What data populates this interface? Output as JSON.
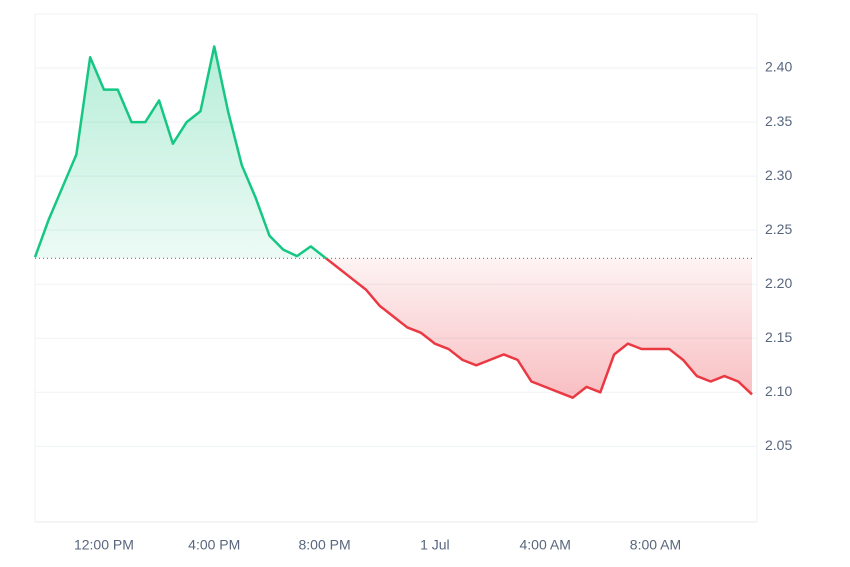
{
  "chart_data": {
    "type": "line",
    "categories": [
      null,
      null,
      null,
      null,
      null,
      "12:00 PM",
      null,
      null,
      null,
      null,
      null,
      null,
      null,
      "4:00 PM",
      null,
      null,
      null,
      null,
      null,
      null,
      null,
      "8:00 PM",
      null,
      null,
      null,
      null,
      null,
      null,
      null,
      "1 Jul",
      null,
      null,
      null,
      null,
      null,
      null,
      null,
      "4:00 AM",
      null,
      null,
      null,
      null,
      null,
      null,
      null,
      "8:00 AM",
      null,
      null,
      null,
      null,
      null,
      null,
      null
    ],
    "values": [
      2.225,
      2.26,
      2.29,
      2.32,
      2.41,
      2.38,
      2.38,
      2.35,
      2.35,
      2.37,
      2.33,
      2.35,
      2.36,
      2.42,
      2.36,
      2.31,
      2.28,
      2.245,
      2.232,
      2.226,
      2.235,
      2.225,
      2.215,
      2.205,
      2.195,
      2.18,
      2.17,
      2.16,
      2.155,
      2.145,
      2.14,
      2.13,
      2.125,
      2.13,
      2.135,
      2.13,
      2.11,
      2.105,
      2.1,
      2.095,
      2.105,
      2.1,
      2.135,
      2.145,
      2.14,
      2.14,
      2.14,
      2.13,
      2.115,
      2.11,
      2.115,
      2.11,
      2.098
    ],
    "baseline": 2.224,
    "up_color": "#16c784",
    "down_color": "#ea3943",
    "ylim": [
      1.98,
      2.45
    ],
    "yticks": [
      2.05,
      {
        "value": 2.1,
        "label": "2.10"
      },
      2.15,
      {
        "value": 2.2,
        "label": "2.20"
      },
      2.25,
      {
        "value": 2.3,
        "label": "2.30"
      },
      2.35,
      {
        "value": 2.4,
        "label": "2.40"
      }
    ],
    "grid": true
  }
}
